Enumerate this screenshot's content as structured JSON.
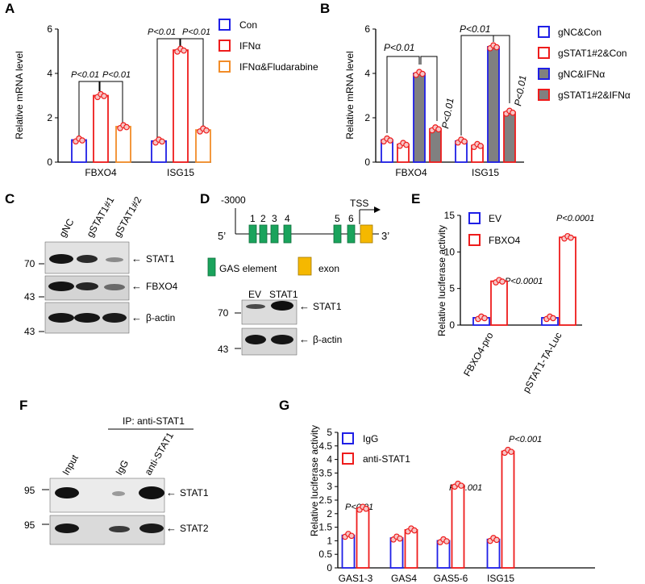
{
  "colors": {
    "blue": "#1f1fe6",
    "red": "#ee1c1c",
    "orange": "#f28c28",
    "gray": "#808080",
    "green": "#1aa35c",
    "gold": "#f5b800",
    "dot_fill": "#f6c6c6"
  },
  "panels": {
    "a": {
      "letter": "A",
      "chart_data": {
        "type": "bar",
        "ylabel": "Relative mRNA level",
        "ylim": [
          0,
          6
        ],
        "yticks": [
          0,
          2,
          4,
          6
        ],
        "categories": [
          "FBXO4",
          "ISG15"
        ],
        "series": [
          {
            "name": "Con",
            "color": "#1f1fe6",
            "fill": "#ffffff",
            "values": [
              1.0,
              0.95
            ]
          },
          {
            "name": "IFNα",
            "color": "#ee1c1c",
            "fill": "#ffffff",
            "values": [
              3.0,
              5.05
            ]
          },
          {
            "name": "IFNα&Fludarabine",
            "color": "#f28c28",
            "fill": "#ffffff",
            "values": [
              1.6,
              1.45
            ]
          }
        ],
        "legend": "top-right",
        "annotations": [
          "P<0.01",
          "P<0.01",
          "P<0.01",
          "P<0.01"
        ]
      }
    },
    "b": {
      "letter": "B",
      "chart_data": {
        "type": "bar",
        "ylabel": "Relative mRNA level",
        "ylim": [
          0,
          6
        ],
        "yticks": [
          0,
          2,
          4,
          6
        ],
        "categories": [
          "FBXO4",
          "ISG15"
        ],
        "series": [
          {
            "name": "gNC&Con",
            "color": "#1f1fe6",
            "fill": "#ffffff",
            "values": [
              1.0,
              0.95
            ]
          },
          {
            "name": "gSTAT1#2&Con",
            "color": "#ee1c1c",
            "fill": "#ffffff",
            "values": [
              0.8,
              0.75
            ]
          },
          {
            "name": "gNC&IFNα",
            "color": "#1f1fe6",
            "fill": "#808080",
            "values": [
              4.0,
              5.2
            ]
          },
          {
            "name": "gSTAT1#2&IFNα",
            "color": "#ee1c1c",
            "fill": "#808080",
            "values": [
              1.5,
              2.25
            ]
          }
        ],
        "legend": "top-right",
        "annotations": [
          "P<0.01",
          "P<0.01",
          "P<0.01",
          "P<0.01"
        ]
      }
    },
    "c": {
      "letter": "C",
      "lanes": [
        "gNC",
        "gSTAT1#1",
        "gSTAT1#2"
      ],
      "rows": [
        {
          "label": "STAT1",
          "mw": "70"
        },
        {
          "label": "FBXO4",
          "mw": "43"
        },
        {
          "label": "β-actin",
          "mw": "43"
        }
      ]
    },
    "d": {
      "letter": "D",
      "promoter": {
        "start_label": "-3000",
        "tss_label": "TSS",
        "five_prime": "5’",
        "three_prime": "3’",
        "gas_numbers": [
          "1",
          "2",
          "3",
          "4",
          "5",
          "6"
        ],
        "legend_gas": "GAS element",
        "legend_exon": "exon"
      },
      "blot": {
        "lanes": [
          "EV",
          "STAT1"
        ],
        "rows": [
          {
            "label": "STAT1",
            "mw": "70"
          },
          {
            "label": "β-actin",
            "mw": "43"
          }
        ]
      }
    },
    "e": {
      "letter": "E",
      "chart_data": {
        "type": "bar",
        "ylabel": "Relative luciferase activity",
        "ylim": [
          0,
          15
        ],
        "yticks": [
          0,
          5,
          10,
          15
        ],
        "categories": [
          "FBXO4-pro",
          "pSTAT1-TA-Luc"
        ],
        "series": [
          {
            "name": "EV",
            "color": "#1f1fe6",
            "fill": "#ffffff",
            "values": [
              1.0,
              1.0
            ]
          },
          {
            "name": "FBXO4",
            "color": "#ee1c1c",
            "fill": "#ffffff",
            "values": [
              6.0,
              12.0
            ]
          }
        ],
        "legend": "top-left",
        "annotations": [
          "P<0.0001",
          "P<0.0001"
        ]
      }
    },
    "f": {
      "letter": "F",
      "ip_label": "IP: anti-STAT1",
      "lanes": [
        "Input",
        "IgG",
        "anti-STAT1"
      ],
      "rows": [
        {
          "label": "STAT1",
          "mw": "95"
        },
        {
          "label": "STAT2",
          "mw": "95"
        }
      ]
    },
    "g": {
      "letter": "G",
      "chart_data": {
        "type": "bar",
        "ylabel": "Relative luciferase activity",
        "ylim": [
          0,
          5
        ],
        "yticks": [
          0,
          0.5,
          1,
          1.5,
          2,
          2.5,
          3,
          3.5,
          4,
          4.5,
          5
        ],
        "ytick_labels": [
          "0",
          "0.5",
          "1",
          "1.5",
          "2",
          "2.5",
          "3",
          "3.5",
          "4",
          "4.5",
          "5"
        ],
        "categories": [
          "GAS1-3",
          "GAS4",
          "GAS5-6",
          "ISG15"
        ],
        "series": [
          {
            "name": "IgG",
            "color": "#1f1fe6",
            "fill": "#ffffff",
            "values": [
              1.2,
              1.1,
              1.0,
              1.05
            ]
          },
          {
            "name": "anti-STAT1",
            "color": "#ee1c1c",
            "fill": "#ffffff",
            "values": [
              2.2,
              1.4,
              3.05,
              4.3
            ]
          }
        ],
        "legend": "top-left",
        "annotations": [
          "P<0.01",
          "P<0.001",
          "P<0.001"
        ]
      }
    }
  }
}
